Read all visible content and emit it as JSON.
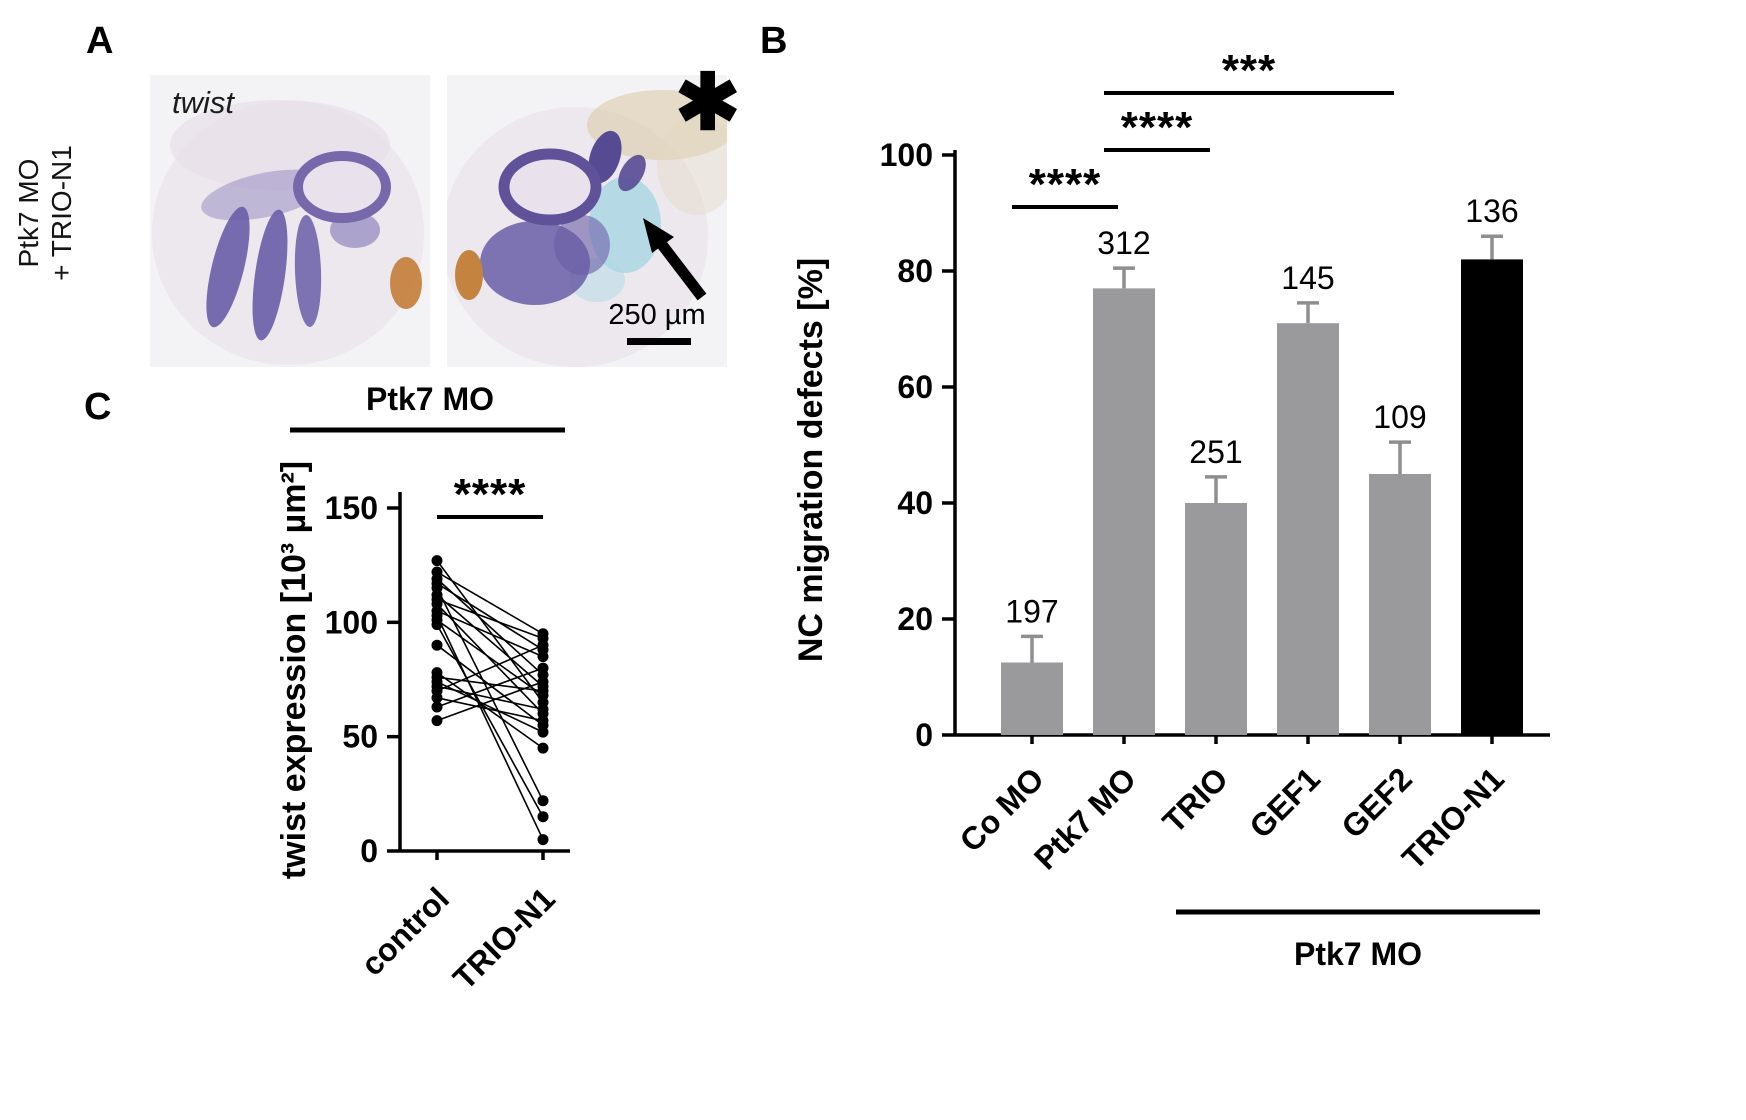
{
  "panel_a": {
    "label": "A",
    "side_label_line1": "Ptk7 MO",
    "side_label_line2": "+ TRIO-N1",
    "gene_label": "twist",
    "asterisk": "✱",
    "scale_bar_text": "250 µm"
  },
  "panel_b": {
    "label": "B"
  },
  "panel_c": {
    "label": "C"
  },
  "colors": {
    "bar_gray": "#9a9a9c",
    "bar_black": "#000000",
    "error_gray": "#8f8f91",
    "stain_purple": "#695da7",
    "tracer_blue": "#a8d6e2",
    "cement_orange": "#c58340"
  },
  "chart_data": [
    {
      "id": "B",
      "type": "bar",
      "title": "",
      "ylabel": "NC migration defects [%]",
      "xlabel": "",
      "categories": [
        "Co MO",
        "Ptk7 MO",
        "TRIO",
        "GEF1",
        "GEF2",
        "TRIO-N1"
      ],
      "values": [
        12.5,
        77,
        40,
        71,
        45,
        82
      ],
      "errors": [
        4.5,
        3.5,
        4.5,
        3.5,
        5.5,
        4
      ],
      "n_labels": [
        "197",
        "312",
        "251",
        "145",
        "109",
        "136"
      ],
      "bar_colors": [
        "#9a9a9c",
        "#9a9a9c",
        "#9a9a9c",
        "#9a9a9c",
        "#9a9a9c",
        "#000000"
      ],
      "error_color": "#8f8f91",
      "ylim": [
        0,
        100
      ],
      "yticks": [
        0,
        20,
        40,
        60,
        80,
        100
      ],
      "grid": false,
      "legend": null,
      "significance": [
        {
          "from": 0,
          "to": 1,
          "stars": "****"
        },
        {
          "from": 1,
          "to": 2,
          "stars": "****"
        },
        {
          "from": 1,
          "to": 4,
          "stars": "***"
        }
      ],
      "group_label": "Ptk7 MO",
      "group_from": 2,
      "group_to": 5
    },
    {
      "id": "C",
      "type": "paired-scatter",
      "title": "Ptk7 MO",
      "ylabel": "twist expression [10³ µm²]",
      "xlabel": "",
      "categories": [
        "control",
        "TRIO-N1"
      ],
      "ylim": [
        0,
        157
      ],
      "yticks": [
        0,
        50,
        100,
        150
      ],
      "grid": false,
      "point_color": "#000000",
      "significance": [
        {
          "from": 0,
          "to": 1,
          "stars": "****"
        }
      ],
      "pairs": [
        [
          127,
          65
        ],
        [
          122,
          95
        ],
        [
          119,
          77
        ],
        [
          117,
          88
        ],
        [
          115,
          22
        ],
        [
          112,
          72
        ],
        [
          110,
          93
        ],
        [
          108,
          60
        ],
        [
          105,
          85
        ],
        [
          103,
          5
        ],
        [
          101,
          68
        ],
        [
          99,
          15
        ],
        [
          90,
          55
        ],
        [
          78,
          45
        ],
        [
          76,
          70
        ],
        [
          74,
          52
        ],
        [
          72,
          62
        ],
        [
          70,
          90
        ],
        [
          67,
          57
        ],
        [
          63,
          80
        ],
        [
          57,
          74
        ]
      ]
    }
  ]
}
